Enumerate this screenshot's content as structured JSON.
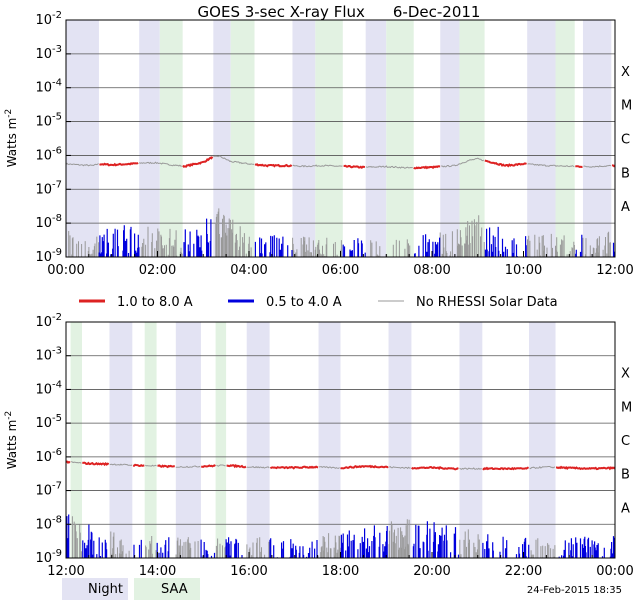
{
  "title": "GOES 3-sec X-ray Flux",
  "date": "6-Dec-2011",
  "footer_timestamp": "24-Feb-2015 18:35",
  "colors": {
    "long_channel": "#dd2222",
    "short_channel": "#0000dd",
    "no_rhessi": "#999999",
    "night_band": "#e3e3f3",
    "saa_band": "#e2f2e2",
    "grid": "#555555"
  },
  "chart_data": [
    {
      "type": "line",
      "panel": "top",
      "title": "GOES 3-sec X-ray Flux    6-Dec-2011",
      "ylabel": "Watts m^-2",
      "yscale": "log",
      "ylim_exp": [
        -9,
        -2
      ],
      "y_tick_labels": [
        {
          "base": "10",
          "exp": "-9"
        },
        {
          "base": "10",
          "exp": "-8"
        },
        {
          "base": "10",
          "exp": "-7"
        },
        {
          "base": "10",
          "exp": "-6"
        },
        {
          "base": "10",
          "exp": "-5"
        },
        {
          "base": "10",
          "exp": "-4"
        },
        {
          "base": "10",
          "exp": "-3"
        },
        {
          "base": "10",
          "exp": "-2"
        }
      ],
      "flare_classes": [
        {
          "label": "A",
          "exp": -8
        },
        {
          "label": "B",
          "exp": -7
        },
        {
          "label": "C",
          "exp": -6
        },
        {
          "label": "M",
          "exp": -5
        },
        {
          "label": "X",
          "exp": -4
        }
      ],
      "x_range_hours": [
        0,
        12
      ],
      "x_tick_labels": [
        "00:00",
        "02:00",
        "04:00",
        "06:00",
        "08:00",
        "10:00",
        "12:00"
      ],
      "night_intervals_hours": [
        [
          0.0,
          0.72
        ],
        [
          1.6,
          2.05
        ],
        [
          3.22,
          3.6
        ],
        [
          4.95,
          5.45
        ],
        [
          6.55,
          7.0
        ],
        [
          8.18,
          8.6
        ],
        [
          10.08,
          10.7
        ],
        [
          11.3,
          11.92
        ]
      ],
      "saa_intervals_hours": [
        [
          2.05,
          2.55
        ],
        [
          3.6,
          4.12
        ],
        [
          5.45,
          6.05
        ],
        [
          7.0,
          7.6
        ],
        [
          8.6,
          9.15
        ],
        [
          10.7,
          11.12
        ]
      ],
      "series": [
        {
          "name": "1.0 to 8.0 A",
          "log10_flux": [
            [
              0.0,
              -6.25
            ],
            [
              0.3,
              -6.28
            ],
            [
              0.6,
              -6.3
            ],
            [
              0.7,
              -6.25
            ],
            [
              1.0,
              -6.28
            ],
            [
              1.4,
              -6.25
            ],
            [
              1.7,
              -6.22
            ],
            [
              2.0,
              -6.22
            ],
            [
              2.3,
              -6.28
            ],
            [
              2.6,
              -6.32
            ],
            [
              3.0,
              -6.2
            ],
            [
              3.2,
              -6.05
            ],
            [
              3.35,
              -6.02
            ],
            [
              3.6,
              -6.18
            ],
            [
              4.0,
              -6.25
            ],
            [
              4.4,
              -6.3
            ],
            [
              4.8,
              -6.3
            ],
            [
              5.2,
              -6.32
            ],
            [
              5.6,
              -6.3
            ],
            [
              6.0,
              -6.32
            ],
            [
              6.5,
              -6.35
            ],
            [
              7.0,
              -6.33
            ],
            [
              7.5,
              -6.37
            ],
            [
              8.0,
              -6.35
            ],
            [
              8.5,
              -6.3
            ],
            [
              8.8,
              -6.15
            ],
            [
              9.0,
              -6.1
            ],
            [
              9.3,
              -6.2
            ],
            [
              9.6,
              -6.3
            ],
            [
              9.8,
              -6.28
            ],
            [
              10.0,
              -6.25
            ],
            [
              10.5,
              -6.3
            ],
            [
              11.0,
              -6.32
            ],
            [
              11.5,
              -6.33
            ],
            [
              12.0,
              -6.3
            ]
          ]
        },
        {
          "name": "0.5 to 4.0 A",
          "log10_flux": [
            [
              0.0,
              -8.8
            ],
            [
              0.5,
              -8.9
            ],
            [
              1.0,
              -8.7
            ],
            [
              1.5,
              -8.6
            ],
            [
              2.0,
              -8.7
            ],
            [
              2.5,
              -8.75
            ],
            [
              3.0,
              -8.5
            ],
            [
              3.3,
              -7.95
            ],
            [
              3.5,
              -8.3
            ],
            [
              3.8,
              -8.6
            ],
            [
              4.2,
              -8.9
            ],
            [
              4.8,
              -8.95
            ],
            [
              5.5,
              -9.0
            ],
            [
              6.5,
              -9.0
            ],
            [
              7.5,
              -9.0
            ],
            [
              8.5,
              -8.7
            ],
            [
              8.9,
              -8.2
            ],
            [
              9.3,
              -8.6
            ],
            [
              9.8,
              -8.8
            ],
            [
              10.3,
              -8.9
            ],
            [
              11.0,
              -8.9
            ],
            [
              12.0,
              -8.8
            ]
          ]
        }
      ]
    },
    {
      "type": "line",
      "panel": "bottom",
      "ylabel": "Watts m^-2",
      "yscale": "log",
      "ylim_exp": [
        -9,
        -2
      ],
      "x_range_hours": [
        12,
        24
      ],
      "x_tick_labels": [
        "12:00",
        "14:00",
        "16:00",
        "18:00",
        "20:00",
        "22:00",
        "00:00"
      ],
      "night_intervals_hours": [
        [
          12.95,
          13.45
        ],
        [
          14.4,
          14.95
        ],
        [
          15.95,
          16.45
        ],
        [
          17.52,
          18.0
        ],
        [
          19.05,
          19.55
        ],
        [
          20.6,
          21.1
        ],
        [
          22.12,
          22.7
        ]
      ],
      "saa_intervals_hours": [
        [
          12.1,
          12.35
        ],
        [
          13.72,
          13.98
        ],
        [
          15.27,
          15.5
        ]
      ],
      "series": [
        {
          "name": "1.0 to 8.0 A",
          "log10_flux": [
            [
              12.0,
              -6.15
            ],
            [
              12.5,
              -6.2
            ],
            [
              13.0,
              -6.22
            ],
            [
              13.5,
              -6.25
            ],
            [
              14.0,
              -6.27
            ],
            [
              14.5,
              -6.3
            ],
            [
              15.0,
              -6.28
            ],
            [
              15.5,
              -6.25
            ],
            [
              16.0,
              -6.3
            ],
            [
              16.5,
              -6.32
            ],
            [
              17.0,
              -6.32
            ],
            [
              17.5,
              -6.3
            ],
            [
              18.0,
              -6.33
            ],
            [
              18.5,
              -6.28
            ],
            [
              19.0,
              -6.3
            ],
            [
              19.5,
              -6.33
            ],
            [
              20.0,
              -6.32
            ],
            [
              20.5,
              -6.35
            ],
            [
              21.0,
              -6.35
            ],
            [
              21.5,
              -6.35
            ],
            [
              22.0,
              -6.35
            ],
            [
              22.5,
              -6.3
            ],
            [
              23.0,
              -6.33
            ],
            [
              23.5,
              -6.35
            ],
            [
              24.0,
              -6.33
            ]
          ]
        },
        {
          "name": "0.5 to 4.0 A",
          "log10_flux": [
            [
              12.0,
              -8.2
            ],
            [
              12.3,
              -8.5
            ],
            [
              13.0,
              -8.8
            ],
            [
              14.0,
              -8.9
            ],
            [
              15.0,
              -8.95
            ],
            [
              16.0,
              -8.95
            ],
            [
              17.0,
              -8.95
            ],
            [
              18.0,
              -8.8
            ],
            [
              19.0,
              -8.5
            ],
            [
              19.5,
              -8.4
            ],
            [
              20.0,
              -8.5
            ],
            [
              20.5,
              -8.6
            ],
            [
              21.0,
              -8.8
            ],
            [
              22.0,
              -8.9
            ],
            [
              23.0,
              -8.95
            ],
            [
              24.0,
              -8.9
            ]
          ]
        }
      ]
    }
  ],
  "legend": [
    {
      "label": "1.0 to 8.0 A",
      "color": "#dd2222",
      "style": "thick"
    },
    {
      "label": "0.5 to 4.0 A",
      "color": "#0000dd",
      "style": "thick"
    },
    {
      "label": "No RHESSI Solar Data",
      "color": "#999999",
      "style": "thin"
    }
  ],
  "bottom_legend": [
    {
      "label": "Night",
      "color": "#e3e3f3"
    },
    {
      "label": "SAA",
      "color": "#e2f2e2"
    }
  ]
}
